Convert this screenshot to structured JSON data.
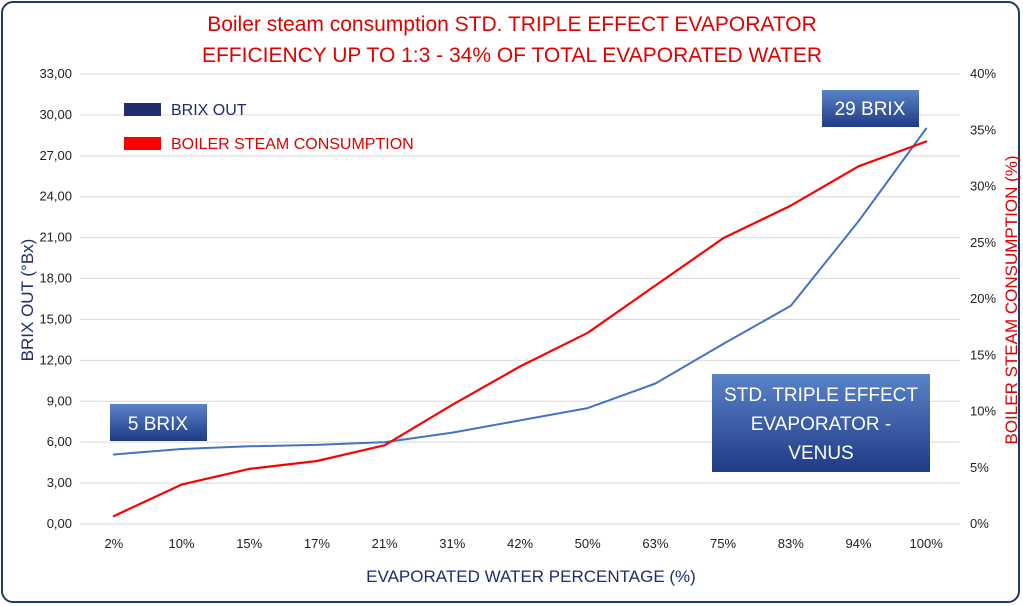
{
  "chart_data": {
    "type": "line",
    "title_lines": [
      "Boiler steam consumption STD. TRIPLE EFFECT EVAPORATOR",
      "EFFICIENCY UP TO 1:3 - 34% OF TOTAL EVAPORATED WATER"
    ],
    "xlabel": "EVAPORATED WATER PERCENTAGE (%)",
    "ylabel_left": "BRIX OUT (°Bx)",
    "ylabel_right": "BOILER STEAM CONSUMPTION (%)",
    "categories": [
      "2%",
      "10%",
      "15%",
      "17%",
      "21%",
      "31%",
      "42%",
      "50%",
      "63%",
      "75%",
      "83%",
      "94%",
      "100%"
    ],
    "y_left_ticks": [
      "0,00",
      "3,00",
      "6,00",
      "9,00",
      "12,00",
      "15,00",
      "18,00",
      "21,00",
      "24,00",
      "27,00",
      "30,00",
      "33,00"
    ],
    "y_right_ticks": [
      "0%",
      "5%",
      "10%",
      "15%",
      "20%",
      "25%",
      "30%",
      "35%",
      "40%"
    ],
    "ylim_left": [
      0,
      33
    ],
    "ylim_right": [
      0,
      40
    ],
    "grid": "horizontal",
    "legend_position": "top-left",
    "series": [
      {
        "name": "BRIX OUT",
        "axis": "left",
        "color": "#4472c4",
        "legend_color": "#1f2d6b",
        "legend_text_color": "#1f2d6b",
        "values": [
          5.1,
          5.5,
          5.7,
          5.8,
          6.0,
          6.7,
          7.6,
          8.5,
          10.3,
          13.2,
          16.0,
          22.2,
          29.0
        ]
      },
      {
        "name": "BOILER STEAM CONSUMPTION",
        "axis": "right",
        "color": "#ff0000",
        "legend_color": "#ff0000",
        "legend_text_color": "#e00000",
        "values": [
          0.7,
          3.5,
          4.9,
          5.6,
          7.0,
          10.6,
          14.0,
          17.0,
          21.2,
          25.4,
          28.3,
          31.8,
          34.0
        ]
      }
    ],
    "annotations": {
      "box_5_brix": "5 BRIX",
      "box_29_brix": "29 BRIX",
      "box_venus": [
        "STD. TRIPLE EFFECT",
        "EVAPORATOR -",
        "VENUS"
      ]
    }
  }
}
